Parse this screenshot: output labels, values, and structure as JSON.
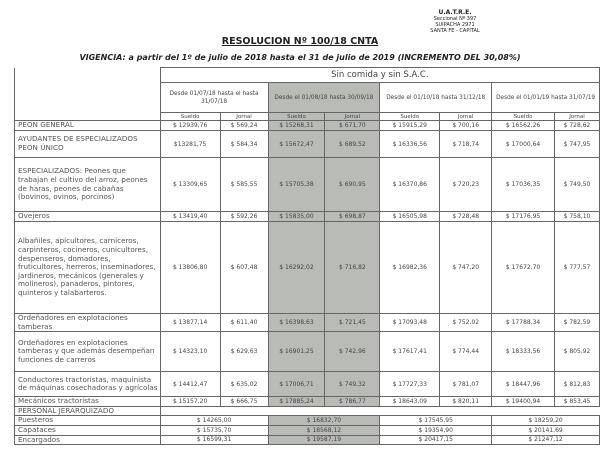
{
  "letterhead": {
    "org": "U.A.T.R.E.",
    "line1": "Seccional Nº 397",
    "line2": "SUIPACHA 2971",
    "line3": "SANTA FE - CAPITAL"
  },
  "title": "RESOLUCION Nº 100/18 CNTA",
  "vigencia": "VIGENCIA: a partir del 1º de julio de 2018  hasta el 31 de julio de 2019 (INCREMENTO DEL 30,08%)",
  "table": {
    "group_header": "Sin comida y sin S.A.C.",
    "periods": [
      "Desde 01/07/18 hasta el hasta 31/07/18",
      "Desde el 01/08/18 hasta 30/09/18",
      "Desde el 01/10/18 hasta 31/12/18",
      "Desde el 01/01/19 hasta 31/07/19"
    ],
    "sueldo": "Sueldo",
    "jornal": "Jornal",
    "rows": [
      {
        "label": "PEON GENERAL",
        "v": [
          "$ 12939,76",
          "$ 569,24",
          "$ 15268,31",
          "$ 671,70",
          "$ 15915,29",
          "$ 700,16",
          "$ 16562,26",
          "$ 728,62"
        ]
      },
      {
        "label": "AYUDANTES DE ESPECIALIZADOS PEON ÚNICO",
        "v": [
          "$13281,75",
          "$ 584,34",
          "$ 15672,47",
          "$ 689,52",
          "$ 16336,56",
          "$ 718,74",
          "$ 17000,64",
          "$ 747,95"
        ]
      },
      {
        "label": "ESPECIALIZADOS: Peones que trabajan el cultivo del arroz, peones de haras, peones de cabañas (bovinos, ovinos, porcinos)",
        "v": [
          "$ 13309,65",
          "$ 585,55",
          "$ 15705,38",
          "$ 690,95",
          "$ 16370,86",
          "$ 720,23",
          "$ 17036,35",
          "$ 749,50"
        ]
      },
      {
        "label": "Ovejeros",
        "v": [
          "$ 13419,40",
          "$ 592,26",
          "$ 15835,00",
          "$ 698,87",
          "$ 16505,98",
          "$ 728,48",
          "$ 17176,95",
          "$ 758,10"
        ]
      },
      {
        "label": "Albañiles, apicultores, carniceros, carpinteros, cocineros, cunicultores, despenseros, domadores, fruticultores, herreros, inseminadores, jardineros, mecánicos (generales y molineros), panaderos, pintores, quinteros y talabarteros.",
        "v": [
          "$ 13806,80",
          "$ 607,48",
          "$ 16292,02",
          "$ 716,82",
          "$ 16982,36",
          "$ 747,20",
          "$ 17672,70",
          "$ 777,57"
        ]
      },
      {
        "label": "Ordeñadores en explotaciones tamberas",
        "v": [
          "$ 13877,14",
          "$ 611,40",
          "$ 16398,63",
          "$ 721,45",
          "$ 17093,48",
          "$ 752,02",
          "$ 17788,34",
          "$ 782,59"
        ]
      },
      {
        "label": "Ordeñadores en explotaciones tamberas y que además desempeñan funciones de carreros",
        "v": [
          "$ 14323,10",
          "$ 629,63",
          "$ 16901,25",
          "$ 742,96",
          "$ 17617,41",
          "$ 774,44",
          "$ 18333,56",
          "$ 805,92"
        ]
      },
      {
        "label": "Conductores tractoristas, maquinista de máquinas cosechadoras y agrícolas",
        "v": [
          "$ 14412,47",
          "$ 635,02",
          "$ 17006,71",
          "$ 749,32",
          "$ 17727,33",
          "$ 781,07",
          "$ 18447,96",
          "$ 812,83"
        ]
      },
      {
        "label": "Mecánicos tractoristas",
        "v": [
          "$ 15157,20",
          "$ 666,75",
          "$ 17885,24",
          "$ 786,77",
          "$ 18643,09",
          "$ 820,11",
          "$ 19400,94",
          "$ 853,45"
        ]
      }
    ],
    "section": "PERSONAL JERARQUIZADO",
    "monthly_rows": [
      {
        "label": "Puesteros",
        "v": [
          "$ 14265,00",
          "$ 16832,70",
          "$ 17545,95",
          "$ 18259,20"
        ]
      },
      {
        "label": "Capataces",
        "v": [
          "$ 15735,70",
          "$ 18568,12",
          "$ 19354,90",
          "$ 20141,69"
        ]
      },
      {
        "label": "Encargados",
        "v": [
          "$ 16599,31",
          "$ 19587,19",
          "$ 20417,15",
          "$ 21247,12"
        ]
      }
    ]
  }
}
